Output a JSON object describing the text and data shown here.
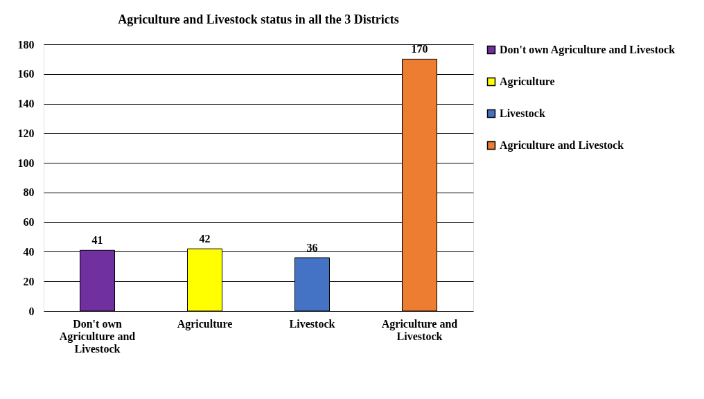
{
  "chart_data": {
    "type": "bar",
    "title": "Agriculture and Livestock status in all the 3 Districts",
    "categories": [
      "Don't own Agriculture and Livestock",
      "Agriculture",
      "Livestock",
      "Agriculture and Livestock"
    ],
    "series": [
      {
        "name": "Don't own Agriculture and Livestock",
        "color": "#7030a0",
        "values": [
          41,
          null,
          null,
          null
        ]
      },
      {
        "name": "Agriculture",
        "color": "#ffff00",
        "values": [
          null,
          42,
          null,
          null
        ]
      },
      {
        "name": "Livestock",
        "color": "#4472c4",
        "values": [
          null,
          null,
          36,
          null
        ]
      },
      {
        "name": "Agriculture and Livestock",
        "color": "#ed7d31",
        "values": [
          null,
          null,
          null,
          170
        ]
      }
    ],
    "ylim": [
      0,
      180
    ],
    "yticks": [
      0,
      20,
      40,
      60,
      80,
      100,
      120,
      140,
      160,
      180
    ],
    "grid": "y",
    "legend": "right",
    "data_labels": true
  }
}
